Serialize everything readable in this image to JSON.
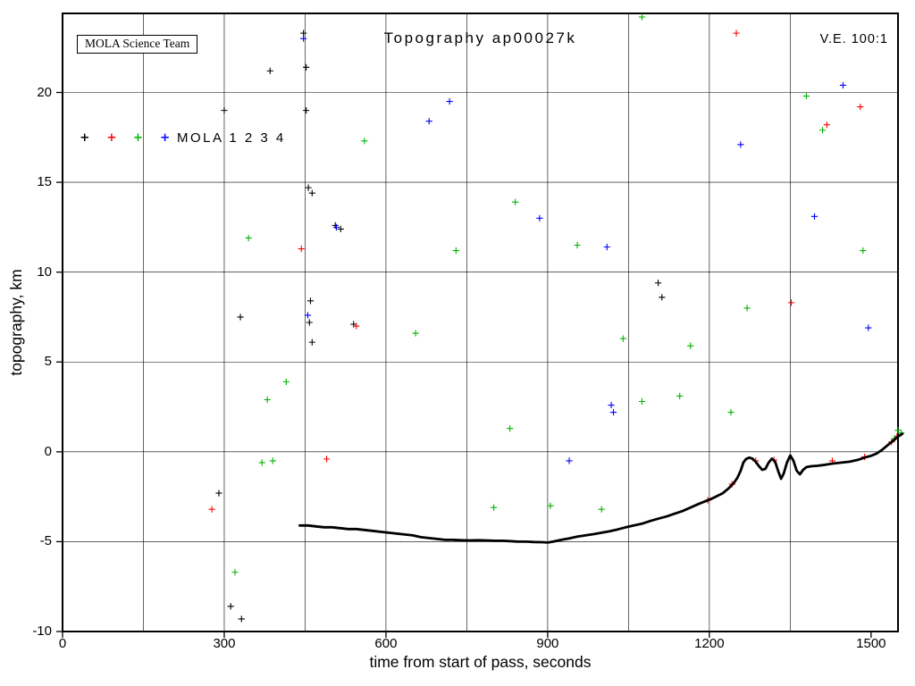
{
  "chart_data": {
    "type": "scatter",
    "title": "Topography ap00027k",
    "ve_label": "V.E. 100:1",
    "credit": "MOLA Science Team",
    "xlabel": "time from start of pass, seconds",
    "ylabel": "topography, km",
    "xlim": [
      0,
      1550
    ],
    "ylim": [
      -10,
      24.4
    ],
    "xticks": [
      0,
      300,
      600,
      900,
      1200,
      1500
    ],
    "yticks": [
      -10,
      -5,
      0,
      5,
      10,
      15,
      20
    ],
    "grid": {
      "on": true,
      "x_interval": 150,
      "y_interval": 5
    },
    "legend": {
      "label": "MOLA 1 2 3 4",
      "y": 17.5,
      "markers": [
        {
          "name": "MOLA 1",
          "x": 41,
          "color": "#000000"
        },
        {
          "name": "MOLA 2",
          "x": 91,
          "color": "#ff0000"
        },
        {
          "name": "MOLA 3",
          "x": 140,
          "color": "#00b300"
        },
        {
          "name": "MOLA 4",
          "x": 190,
          "color": "#0000ff"
        }
      ]
    },
    "profile": {
      "name": "ground-topography-profile",
      "color": "#000000",
      "points": [
        [
          440,
          -4.1
        ],
        [
          455,
          -4.1
        ],
        [
          470,
          -4.15
        ],
        [
          485,
          -4.2
        ],
        [
          500,
          -4.2
        ],
        [
          515,
          -4.25
        ],
        [
          530,
          -4.3
        ],
        [
          545,
          -4.3
        ],
        [
          560,
          -4.35
        ],
        [
          575,
          -4.4
        ],
        [
          590,
          -4.45
        ],
        [
          605,
          -4.5
        ],
        [
          620,
          -4.55
        ],
        [
          635,
          -4.6
        ],
        [
          650,
          -4.65
        ],
        [
          665,
          -4.75
        ],
        [
          680,
          -4.8
        ],
        [
          695,
          -4.85
        ],
        [
          710,
          -4.9
        ],
        [
          725,
          -4.9
        ],
        [
          740,
          -4.92
        ],
        [
          755,
          -4.93
        ],
        [
          770,
          -4.92
        ],
        [
          785,
          -4.93
        ],
        [
          800,
          -4.95
        ],
        [
          815,
          -4.95
        ],
        [
          830,
          -4.97
        ],
        [
          845,
          -5.0
        ],
        [
          860,
          -5.0
        ],
        [
          875,
          -5.02
        ],
        [
          890,
          -5.03
        ],
        [
          900,
          -5.05
        ],
        [
          910,
          -5.0
        ],
        [
          925,
          -4.9
        ],
        [
          940,
          -4.82
        ],
        [
          955,
          -4.72
        ],
        [
          970,
          -4.65
        ],
        [
          985,
          -4.58
        ],
        [
          1000,
          -4.5
        ],
        [
          1015,
          -4.42
        ],
        [
          1030,
          -4.32
        ],
        [
          1045,
          -4.2
        ],
        [
          1060,
          -4.1
        ],
        [
          1075,
          -4.0
        ],
        [
          1090,
          -3.85
        ],
        [
          1105,
          -3.72
        ],
        [
          1120,
          -3.6
        ],
        [
          1135,
          -3.45
        ],
        [
          1150,
          -3.3
        ],
        [
          1165,
          -3.1
        ],
        [
          1180,
          -2.9
        ],
        [
          1195,
          -2.72
        ],
        [
          1205,
          -2.6
        ],
        [
          1215,
          -2.45
        ],
        [
          1225,
          -2.3
        ],
        [
          1235,
          -2.05
        ],
        [
          1245,
          -1.75
        ],
        [
          1252,
          -1.45
        ],
        [
          1258,
          -1.05
        ],
        [
          1263,
          -0.6
        ],
        [
          1268,
          -0.4
        ],
        [
          1274,
          -0.32
        ],
        [
          1280,
          -0.38
        ],
        [
          1286,
          -0.55
        ],
        [
          1292,
          -0.8
        ],
        [
          1298,
          -1.0
        ],
        [
          1304,
          -0.95
        ],
        [
          1310,
          -0.6
        ],
        [
          1316,
          -0.38
        ],
        [
          1322,
          -0.55
        ],
        [
          1328,
          -1.1
        ],
        [
          1333,
          -1.5
        ],
        [
          1338,
          -1.2
        ],
        [
          1344,
          -0.6
        ],
        [
          1350,
          -0.2
        ],
        [
          1356,
          -0.5
        ],
        [
          1362,
          -1.05
        ],
        [
          1368,
          -1.25
        ],
        [
          1374,
          -1.0
        ],
        [
          1380,
          -0.85
        ],
        [
          1390,
          -0.8
        ],
        [
          1400,
          -0.78
        ],
        [
          1415,
          -0.72
        ],
        [
          1430,
          -0.65
        ],
        [
          1445,
          -0.6
        ],
        [
          1460,
          -0.55
        ],
        [
          1475,
          -0.45
        ],
        [
          1490,
          -0.3
        ],
        [
          1500,
          -0.22
        ],
        [
          1510,
          -0.1
        ],
        [
          1520,
          0.1
        ],
        [
          1530,
          0.35
        ],
        [
          1540,
          0.6
        ],
        [
          1550,
          0.85
        ],
        [
          1558,
          1.0
        ]
      ]
    },
    "noise_series": [
      {
        "name": "MOLA 1",
        "color": "#000000",
        "points": [
          [
            385,
            21.2
          ],
          [
            447,
            23.3
          ],
          [
            452,
            21.4
          ],
          [
            300,
            19.0
          ],
          [
            452,
            19.0
          ],
          [
            456,
            14.7
          ],
          [
            463,
            14.4
          ],
          [
            506,
            12.6
          ],
          [
            516,
            12.4
          ],
          [
            330,
            7.5
          ],
          [
            460,
            8.4
          ],
          [
            458,
            7.2
          ],
          [
            463,
            6.1
          ],
          [
            540,
            7.1
          ],
          [
            290,
            -2.3
          ],
          [
            312,
            -8.6
          ],
          [
            332,
            -9.3
          ],
          [
            1105,
            9.4
          ],
          [
            1112,
            8.6
          ]
        ]
      },
      {
        "name": "MOLA 2",
        "color": "#ff0000",
        "points": [
          [
            443,
            11.3
          ],
          [
            277,
            -3.2
          ],
          [
            490,
            -0.4
          ],
          [
            545,
            7.0
          ],
          [
            1250,
            23.3
          ],
          [
            1418,
            18.2
          ],
          [
            1352,
            8.3
          ],
          [
            1480,
            19.2
          ],
          [
            1197,
            -2.7
          ],
          [
            1242,
            -1.8
          ],
          [
            1286,
            -0.5
          ],
          [
            1320,
            -0.45
          ],
          [
            1428,
            -0.5
          ],
          [
            1488,
            -0.28
          ],
          [
            1538,
            0.55
          ],
          [
            1548,
            0.85
          ]
        ]
      },
      {
        "name": "MOLA 3",
        "color": "#00b300",
        "points": [
          [
            345,
            11.9
          ],
          [
            380,
            2.9
          ],
          [
            415,
            3.9
          ],
          [
            370,
            -0.6
          ],
          [
            390,
            -0.5
          ],
          [
            320,
            -6.7
          ],
          [
            560,
            17.3
          ],
          [
            655,
            6.6
          ],
          [
            730,
            11.2
          ],
          [
            840,
            13.9
          ],
          [
            830,
            1.3
          ],
          [
            800,
            -3.1
          ],
          [
            905,
            -3.0
          ],
          [
            955,
            11.5
          ],
          [
            1000,
            -3.2
          ],
          [
            1040,
            6.3
          ],
          [
            1075,
            24.2
          ],
          [
            1145,
            3.1
          ],
          [
            1165,
            5.9
          ],
          [
            1240,
            2.2
          ],
          [
            1270,
            8.0
          ],
          [
            1380,
            19.8
          ],
          [
            1410,
            17.9
          ],
          [
            1485,
            11.2
          ],
          [
            1075,
            2.8
          ],
          [
            1550,
            1.2
          ],
          [
            1544,
            0.75
          ],
          [
            1556,
            1.05
          ]
        ]
      },
      {
        "name": "MOLA 4",
        "color": "#0000ff",
        "points": [
          [
            447,
            23.0
          ],
          [
            508,
            12.5
          ],
          [
            718,
            19.5
          ],
          [
            680,
            18.4
          ],
          [
            885,
            13.0
          ],
          [
            1010,
            11.4
          ],
          [
            1018,
            2.6
          ],
          [
            1022,
            2.2
          ],
          [
            1258,
            17.1
          ],
          [
            1395,
            13.1
          ],
          [
            1448,
            20.4
          ],
          [
            1495,
            6.9
          ],
          [
            455,
            7.6
          ],
          [
            940,
            -0.5
          ]
        ]
      }
    ]
  }
}
